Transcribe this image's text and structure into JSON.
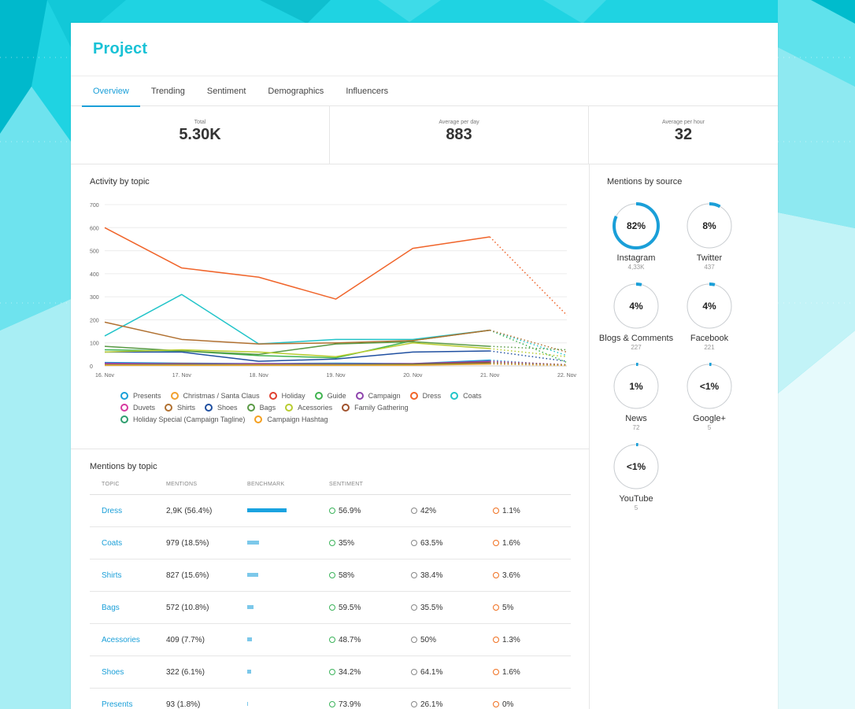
{
  "project": {
    "title": "Project"
  },
  "tabs": [
    "Overview",
    "Trending",
    "Sentiment",
    "Demographics",
    "Influencers"
  ],
  "stats": [
    {
      "label": "Total",
      "value": "5.30K"
    },
    {
      "label": "Average per day",
      "value": "883"
    },
    {
      "label": "Average per hour",
      "value": "32"
    }
  ],
  "activity": {
    "title": "Activity by topic"
  },
  "chart_data": {
    "type": "line",
    "title": "Activity by topic",
    "categories": [
      "16. Nov",
      "17. Nov",
      "18. Nov",
      "19. Nov",
      "20. Nov",
      "21. Nov",
      "22. Nov"
    ],
    "y_ticks": [
      "0",
      "100",
      "200",
      "300",
      "400",
      "500",
      "600",
      "700"
    ],
    "ylim": [
      0,
      700
    ],
    "grid": true,
    "legend_position": "bottom",
    "last_segment_style": "dotted",
    "series": [
      {
        "name": "Presents",
        "color": "#1a9fd8",
        "values": [
          15,
          12,
          10,
          12,
          10,
          25,
          2
        ]
      },
      {
        "name": "Christmas / Santa Claus",
        "color": "#f0a030",
        "values": [
          5,
          8,
          10,
          8,
          5,
          10,
          3
        ]
      },
      {
        "name": "Holiday",
        "color": "#e04030",
        "values": [
          10,
          10,
          8,
          8,
          8,
          20,
          5
        ]
      },
      {
        "name": "Guide",
        "color": "#3fb34f",
        "values": [
          70,
          65,
          45,
          35,
          110,
          155,
          15
        ]
      },
      {
        "name": "Campaign",
        "color": "#8e44ad",
        "values": [
          12,
          8,
          10,
          8,
          10,
          20,
          5
        ]
      },
      {
        "name": "Dress",
        "color": "#f0642a",
        "values": [
          600,
          425,
          385,
          290,
          510,
          560,
          220
        ]
      },
      {
        "name": "Coats",
        "color": "#22c4c9",
        "values": [
          130,
          310,
          95,
          115,
          115,
          155,
          45
        ]
      },
      {
        "name": "Duvets",
        "color": "#d63aa0",
        "values": [
          8,
          5,
          8,
          5,
          5,
          10,
          3
        ]
      },
      {
        "name": "Shirts",
        "color": "#b07030",
        "values": [
          190,
          115,
          95,
          100,
          110,
          155,
          60
        ]
      },
      {
        "name": "Shoes",
        "color": "#1f4fa0",
        "values": [
          60,
          60,
          20,
          30,
          60,
          65,
          20
        ]
      },
      {
        "name": "Bags",
        "color": "#5a9a45",
        "values": [
          85,
          65,
          50,
          95,
          105,
          85,
          70
        ]
      },
      {
        "name": "Acessories",
        "color": "#b8cc30",
        "values": [
          60,
          70,
          60,
          40,
          100,
          75,
          40
        ]
      },
      {
        "name": "Family Gathering",
        "color": "#a0522d",
        "values": [
          5,
          5,
          5,
          5,
          8,
          15,
          5
        ]
      },
      {
        "name": "Holiday Special (Campaign Tagline)",
        "color": "#2e9e6e",
        "values": [
          5,
          5,
          5,
          5,
          5,
          10,
          3
        ]
      },
      {
        "name": "Campaign Hashtag",
        "color": "#f5a020",
        "values": [
          3,
          3,
          3,
          3,
          3,
          8,
          2
        ]
      }
    ]
  },
  "mentions_topic": {
    "title": "Mentions by topic",
    "headers": [
      "TOPIC",
      "MENTIONS",
      "BENCHMARK",
      "SENTIMENT"
    ],
    "rows": [
      {
        "topic": "Dress",
        "mentions": "2,9K (56.4%)",
        "benchmark": 1.0,
        "pos": "56.9%",
        "neu": "42%",
        "neg": "1.1%"
      },
      {
        "topic": "Coats",
        "mentions": "979 (18.5%)",
        "benchmark": 0.3,
        "pos": "35%",
        "neu": "63.5%",
        "neg": "1.6%"
      },
      {
        "topic": "Shirts",
        "mentions": "827 (15.6%)",
        "benchmark": 0.28,
        "pos": "58%",
        "neu": "38.4%",
        "neg": "3.6%"
      },
      {
        "topic": "Bags",
        "mentions": "572 (10.8%)",
        "benchmark": 0.16,
        "pos": "59.5%",
        "neu": "35.5%",
        "neg": "5%"
      },
      {
        "topic": "Acessories",
        "mentions": "409 (7.7%)",
        "benchmark": 0.11,
        "pos": "48.7%",
        "neu": "50%",
        "neg": "1.3%"
      },
      {
        "topic": "Shoes",
        "mentions": "322 (6.1%)",
        "benchmark": 0.09,
        "pos": "34.2%",
        "neu": "64.1%",
        "neg": "1.6%"
      },
      {
        "topic": "Presents",
        "mentions": "93 (1.8%)",
        "benchmark": 0.02,
        "pos": "73.9%",
        "neu": "26.1%",
        "neg": "0%"
      }
    ]
  },
  "sources": {
    "title": "Mentions by source",
    "items": [
      {
        "name": "Instagram",
        "pct_label": "82%",
        "pct": 82,
        "count": "4,33K"
      },
      {
        "name": "Twitter",
        "pct_label": "8%",
        "pct": 8,
        "count": "437"
      },
      {
        "name": "Blogs & Comments",
        "pct_label": "4%",
        "pct": 4,
        "count": "227"
      },
      {
        "name": "Facebook",
        "pct_label": "4%",
        "pct": 4,
        "count": "221"
      },
      {
        "name": "News",
        "pct_label": "1%",
        "pct": 1,
        "count": "72"
      },
      {
        "name": "Google+",
        "pct_label": "<1%",
        "pct": 0.5,
        "count": "5"
      },
      {
        "name": "YouTube",
        "pct_label": "<1%",
        "pct": 0.5,
        "count": "5"
      }
    ]
  },
  "colors": {
    "accent": "#1a9fd8",
    "title": "#19c2d6",
    "background": "#2ad6e4",
    "positive": "#3bb35a",
    "neutral": "#888888",
    "negative": "#f07020"
  }
}
